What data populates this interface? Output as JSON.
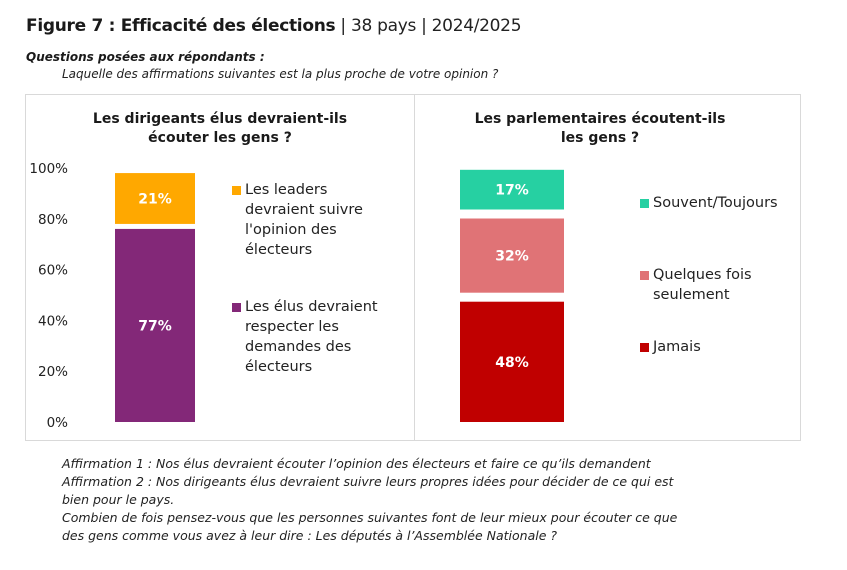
{
  "figure": {
    "title_bold": "Figure 7 : Efficacité des élections",
    "title_rest": " | 38 pays | 2024/2025",
    "questions_heading": "Questions posées aux répondants :",
    "question_line": "Laquelle des affirmations suivantes est la plus proche de votre opinion ?",
    "notes": [
      "Affirmation 1 : Nos élus devraient écouter l’opinion des électeurs et faire ce qu’ils demandent",
      "Affirmation 2 : Nos dirigeants élus devraient suivre leurs propres idées pour décider de ce qui est",
      "bien pour le pays.",
      "Combien de fois pensez-vous que les personnes suivantes font de leur mieux pour écouter ce que",
      "des gens comme vous avez à leur dire : Les députés à l’Assemblée Nationale ?"
    ]
  },
  "chart_data": [
    {
      "type": "bar",
      "stacked": true,
      "title": "Les dirigeants élus devraient-ils écouter les gens ?",
      "title_lines": [
        "Les dirigeants élus devraient-ils",
        "écouter les gens ?"
      ],
      "categories": [
        ""
      ],
      "ylim": [
        0,
        100
      ],
      "yticks": [
        "0%",
        "20%",
        "40%",
        "60%",
        "80%",
        "100%"
      ],
      "grid": false,
      "legend_position": "right",
      "series": [
        {
          "name": "Les élus devraient respecter les demandes des électeurs",
          "legend_lines": [
            "Les élus devraient",
            "respecter les",
            "demandes des",
            "électeurs"
          ],
          "values": [
            77
          ],
          "label": "77%",
          "color": "#832878"
        },
        {
          "name": "Les leaders devraient suivre l'opinion des électeurs",
          "legend_lines": [
            "Les leaders",
            "devraient suivre",
            "l'opinion des",
            "électeurs"
          ],
          "values": [
            21
          ],
          "label": "21%",
          "color": "#FFA800"
        }
      ]
    },
    {
      "type": "bar",
      "stacked": true,
      "title": "Les parlementaires écoutent-ils les gens ?",
      "title_lines": [
        "Les parlementaires écoutent-ils",
        "les gens ?"
      ],
      "categories": [
        ""
      ],
      "ylim": [
        0,
        100
      ],
      "grid": false,
      "legend_position": "right",
      "series": [
        {
          "name": "Jamais",
          "legend_lines": [
            "Jamais"
          ],
          "values": [
            48
          ],
          "label": "48%",
          "color": "#C00000"
        },
        {
          "name": "Quelques fois seulement",
          "legend_lines": [
            "Quelques fois",
            "seulement"
          ],
          "values": [
            32
          ],
          "label": "32%",
          "color": "#E07376"
        },
        {
          "name": "Souvent/Toujours",
          "legend_lines": [
            "Souvent/Toujours"
          ],
          "values": [
            17
          ],
          "label": "17%",
          "color": "#26D0A2"
        }
      ]
    }
  ]
}
